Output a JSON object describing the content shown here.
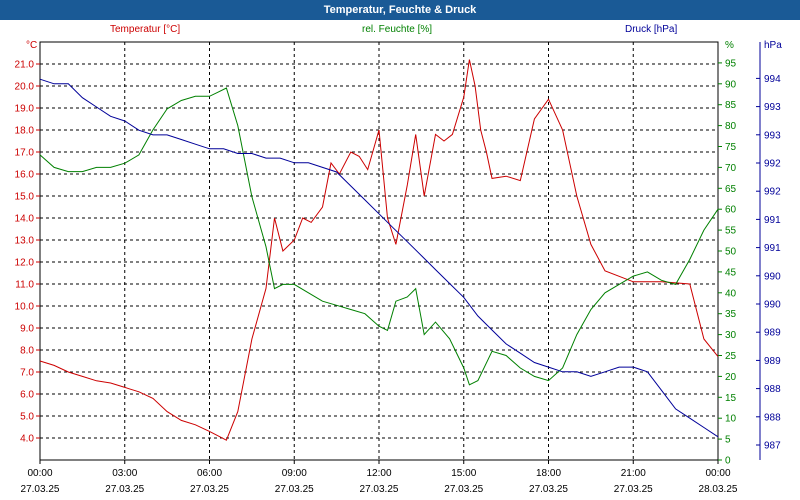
{
  "title": "Temperatur, Feuchte & Druck",
  "colors": {
    "temperature": "#cc0000",
    "humidity": "#008000",
    "pressure": "#000099",
    "title_bg": "#1a5a96"
  },
  "chart_data": {
    "type": "line",
    "grid": true,
    "x_ticks": [
      {
        "time": "00:00",
        "date": "27.03.25"
      },
      {
        "time": "03:00",
        "date": "27.03.25"
      },
      {
        "time": "06:00",
        "date": "27.03.25"
      },
      {
        "time": "09:00",
        "date": "27.03.25"
      },
      {
        "time": "12:00",
        "date": "27.03.25"
      },
      {
        "time": "15:00",
        "date": "27.03.25"
      },
      {
        "time": "18:00",
        "date": "27.03.25"
      },
      {
        "time": "21:00",
        "date": "27.03.25"
      },
      {
        "time": "00:00",
        "date": "28.03.25"
      }
    ],
    "xlim": [
      0,
      24
    ],
    "axes": {
      "temperature": {
        "label": "Temperatur [°C]",
        "unit": "°C",
        "ylim": [
          3,
          22
        ],
        "ticks": [
          "4.0",
          "5.0",
          "6.0",
          "7.0",
          "8.0",
          "9.0",
          "10.0",
          "11.0",
          "12.0",
          "13.0",
          "14.0",
          "15.0",
          "16.0",
          "17.0",
          "18.0",
          "19.0",
          "20.0",
          "21.0"
        ]
      },
      "humidity": {
        "label": "rel. Feuchte [%]",
        "unit": "%",
        "ylim": [
          0,
          100
        ],
        "ticks": [
          "0",
          "5",
          "10",
          "15",
          "20",
          "25",
          "30",
          "35",
          "40",
          "45",
          "50",
          "55",
          "60",
          "65",
          "70",
          "75",
          "80",
          "85",
          "90",
          "95"
        ]
      },
      "pressure": {
        "label": "Druck [hPa]",
        "unit": "hPa",
        "ylim": [
          986.5,
          995.5
        ],
        "ticks": [
          "987",
          "988",
          "988",
          "989",
          "989",
          "990",
          "990",
          "991",
          "991",
          "992",
          "992",
          "993",
          "993",
          "994"
        ]
      }
    },
    "series": [
      {
        "name": "Temperatur [°C]",
        "axis": "temperature",
        "x": [
          0,
          0.5,
          1,
          1.5,
          2,
          2.5,
          3,
          3.5,
          4,
          4.5,
          5,
          5.5,
          6,
          6.3,
          6.6,
          7,
          7.5,
          8,
          8.3,
          8.6,
          9,
          9.3,
          9.6,
          10,
          10.3,
          10.6,
          11,
          11.3,
          11.6,
          12,
          12.3,
          12.6,
          13,
          13.3,
          13.6,
          14,
          14.3,
          14.6,
          15,
          15.2,
          15.4,
          15.6,
          15.8,
          16,
          16.5,
          17,
          17.5,
          18,
          18.5,
          19,
          19.5,
          20,
          21,
          22,
          23,
          23.5,
          24
        ],
        "y": [
          7.5,
          7.3,
          7.0,
          6.8,
          6.6,
          6.5,
          6.3,
          6.1,
          5.8,
          5.2,
          4.8,
          4.6,
          4.3,
          4.1,
          3.9,
          5.2,
          8.5,
          10.8,
          14.0,
          12.5,
          13.0,
          14.0,
          13.8,
          14.5,
          16.5,
          16.0,
          17.0,
          16.8,
          16.2,
          18.0,
          14.0,
          12.8,
          15.5,
          17.8,
          15.0,
          17.8,
          17.5,
          17.8,
          19.5,
          21.2,
          20.0,
          18.0,
          17.0,
          15.8,
          15.9,
          15.7,
          18.5,
          19.4,
          18.0,
          15.0,
          12.8,
          11.6,
          11.1,
          11.1,
          11.0,
          8.5,
          7.7
        ]
      },
      {
        "name": "rel. Feuchte [%]",
        "axis": "humidity",
        "x": [
          0,
          0.5,
          1,
          1.5,
          2,
          2.5,
          3,
          3.5,
          4,
          4.5,
          5,
          5.5,
          6,
          6.3,
          6.6,
          7,
          7.5,
          8,
          8.3,
          8.6,
          9,
          9.5,
          10,
          10.5,
          11,
          11.5,
          12,
          12.3,
          12.6,
          13,
          13.3,
          13.6,
          14,
          14.5,
          15,
          15.2,
          15.5,
          16,
          16.5,
          17,
          17.5,
          18,
          18.5,
          19,
          19.5,
          20,
          20.5,
          21,
          21.5,
          22,
          22.5,
          23,
          23.5,
          24
        ],
        "y": [
          73,
          70,
          69,
          69,
          70,
          70,
          71,
          73,
          79,
          84,
          86,
          87,
          87,
          88,
          89,
          80,
          63,
          51,
          41,
          42,
          42,
          40,
          38,
          37,
          36,
          35,
          32,
          31,
          38,
          39,
          41,
          30,
          33,
          29,
          22,
          18,
          19,
          26,
          25,
          22,
          20,
          19,
          22,
          30,
          36,
          40,
          42,
          44,
          45,
          43,
          42,
          48,
          55,
          60
        ]
      },
      {
        "name": "Druck [hPa]",
        "axis": "pressure",
        "x": [
          0,
          0.5,
          1,
          1.5,
          2,
          2.5,
          3,
          3.5,
          4,
          4.5,
          5,
          5.5,
          6,
          6.5,
          7,
          7.5,
          8,
          8.5,
          9,
          9.5,
          10,
          10.5,
          11,
          11.5,
          12,
          12.5,
          13,
          13.5,
          14,
          14.5,
          15,
          15.5,
          16,
          16.5,
          17,
          17.5,
          18,
          18.5,
          19,
          19.5,
          20,
          20.5,
          21,
          21.5,
          22,
          22.5,
          23,
          23.5,
          24
        ],
        "y": [
          994.7,
          994.6,
          994.6,
          994.3,
          994.1,
          993.9,
          993.8,
          993.6,
          993.5,
          993.5,
          993.4,
          993.3,
          993.2,
          993.2,
          993.1,
          993.1,
          993.0,
          993.0,
          992.9,
          992.9,
          992.8,
          992.7,
          992.4,
          992.1,
          991.8,
          991.5,
          991.2,
          990.9,
          990.6,
          990.3,
          990.0,
          989.6,
          989.3,
          989.0,
          988.8,
          988.6,
          988.5,
          988.4,
          988.4,
          988.3,
          988.4,
          988.5,
          988.5,
          988.4,
          988.0,
          987.6,
          987.4,
          987.2,
          987.0
        ]
      }
    ]
  }
}
